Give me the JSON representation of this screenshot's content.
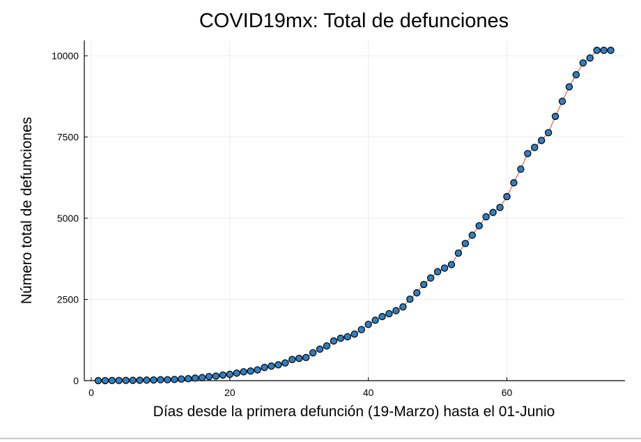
{
  "chart_data": {
    "type": "scatter",
    "title": "COVID19mx: Total de defunciones",
    "xlabel": "Días desde la primera defunción (19-Marzo) hasta el 01-Junio",
    "ylabel": "Número total de defunciones",
    "xlim": [
      0,
      76
    ],
    "ylim": [
      0,
      10500
    ],
    "xticks": [
      0,
      20,
      40,
      60
    ],
    "yticks": [
      0,
      2500,
      5000,
      7500,
      10000
    ],
    "grid": true,
    "legend": "none",
    "series": [
      {
        "marker_color": "#2f7fc1",
        "line_color": "#e26a4f",
        "x": [
          1,
          2,
          3,
          4,
          5,
          6,
          7,
          8,
          9,
          10,
          11,
          12,
          13,
          14,
          15,
          16,
          17,
          18,
          19,
          20,
          21,
          22,
          23,
          24,
          25,
          26,
          27,
          28,
          29,
          30,
          31,
          32,
          33,
          34,
          35,
          36,
          37,
          38,
          39,
          40,
          41,
          42,
          43,
          44,
          45,
          46,
          47,
          48,
          49,
          50,
          51,
          52,
          53,
          54,
          55,
          56,
          57,
          58,
          59,
          60,
          61,
          62,
          63,
          64,
          65,
          66,
          67,
          68,
          69,
          70,
          71,
          72,
          73,
          74,
          75
        ],
        "y": [
          1,
          2,
          3,
          5,
          6,
          8,
          12,
          16,
          20,
          28,
          29,
          37,
          50,
          60,
          79,
          94,
          125,
          141,
          174,
          194,
          233,
          273,
          296,
          332,
          406,
          449,
          486,
          546,
          650,
          686,
          712,
          857,
          970,
          1069,
          1221,
          1305,
          1351,
          1434,
          1569,
          1732,
          1859,
          1972,
          2061,
          2154,
          2271,
          2507,
          2704,
          2961,
          3160,
          3353,
          3465,
          3573,
          3926,
          4220,
          4477,
          4767,
          5045,
          5177,
          5332,
          5666,
          6090,
          6510,
          6989,
          7179,
          7394,
          7633,
          8134,
          8597,
          9044,
          9415,
          9779,
          9930,
          10167,
          10167,
          10167
        ]
      }
    ]
  }
}
